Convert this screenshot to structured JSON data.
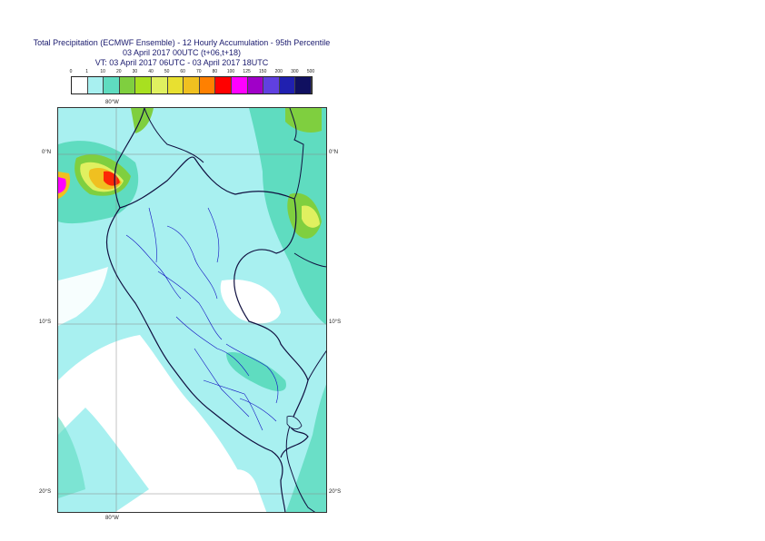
{
  "title": {
    "line1": "Total Precipitation (ECMWF Ensemble) - 12 Hourly Accumulation - 95th Percentile",
    "line2": "03 April 2017 00UTC (t+06,t+18)",
    "line3": "VT: 03 April 2017 06UTC - 03 April 2017 18UTC"
  },
  "legend": {
    "labels": [
      "0",
      "1",
      "10",
      "20",
      "30",
      "40",
      "50",
      "60",
      "70",
      "80",
      "100",
      "125",
      "150",
      "200",
      "300",
      "500"
    ],
    "colors": [
      "#ffffff",
      "#a8f0f0",
      "#5fdcc0",
      "#7fcf3f",
      "#a8e020",
      "#e0f060",
      "#e8e030",
      "#f0c020",
      "#ff8000",
      "#ff0000",
      "#ff00ff",
      "#a000c8",
      "#6040e0",
      "#2020b0",
      "#101060"
    ]
  },
  "axes": {
    "lon_label_top": "80°W",
    "lon_label_bottom": "80°W",
    "lat_labels_left": [
      "0°N",
      "10°S",
      "20°S"
    ],
    "lat_labels_right": [
      "0°N",
      "10°S",
      "20°S"
    ]
  }
}
